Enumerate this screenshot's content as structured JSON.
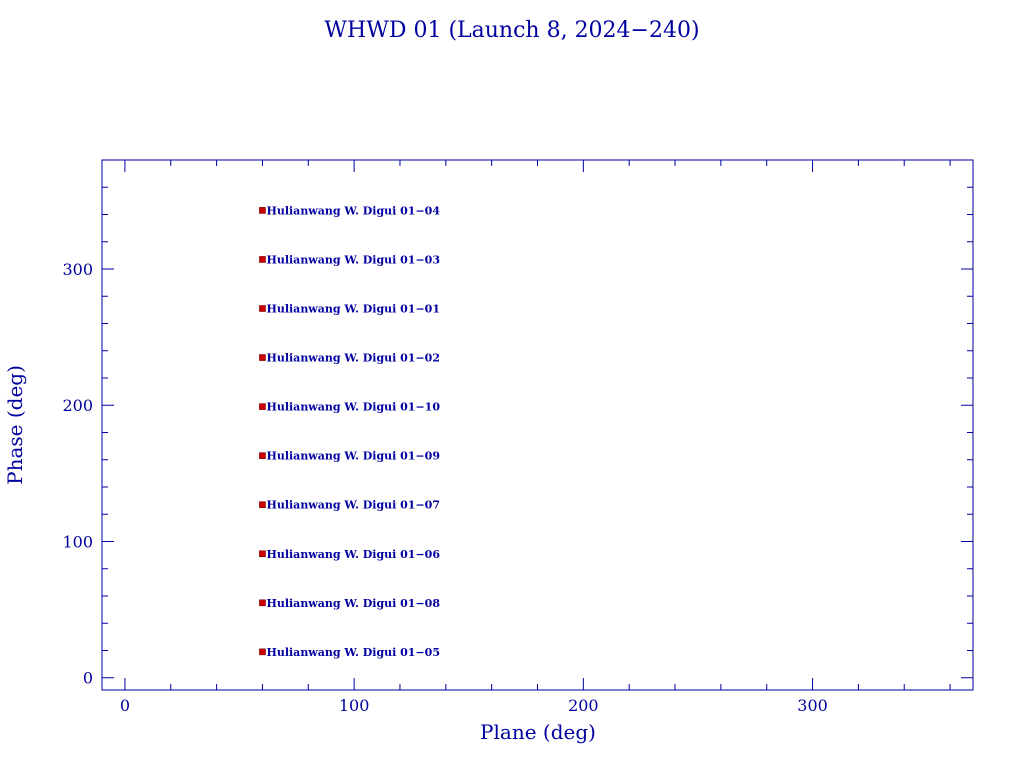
{
  "chart_data": {
    "type": "scatter",
    "title": "WHWD 01 (Launch 8, 2024−240)",
    "xlabel": "Plane (deg)",
    "ylabel": "Phase (deg)",
    "xlim": [
      -10,
      370
    ],
    "ylim": [
      -9,
      380
    ],
    "x_ticks": [
      0,
      100,
      200,
      300
    ],
    "x_tick_labels": [
      "0",
      "100",
      "200",
      "300"
    ],
    "y_ticks": [
      0,
      100,
      200,
      300
    ],
    "y_tick_labels": [
      "0",
      "100",
      "200",
      "300"
    ],
    "x_minor_step": 20,
    "y_minor_step": 20,
    "grid": false,
    "marker_color": "#cc0000",
    "axis_color": "#0000a0",
    "points": [
      {
        "x": 60,
        "y": 343,
        "label": "Hulianwang W. Digui 01−04"
      },
      {
        "x": 60,
        "y": 307,
        "label": "Hulianwang W. Digui 01−03"
      },
      {
        "x": 60,
        "y": 271,
        "label": "Hulianwang W. Digui 01−01"
      },
      {
        "x": 60,
        "y": 235,
        "label": "Hulianwang W. Digui 01−02"
      },
      {
        "x": 60,
        "y": 199,
        "label": "Hulianwang W. Digui 01−10"
      },
      {
        "x": 60,
        "y": 163,
        "label": "Hulianwang W. Digui 01−09"
      },
      {
        "x": 60,
        "y": 127,
        "label": "Hulianwang W. Digui 01−07"
      },
      {
        "x": 60,
        "y": 91,
        "label": "Hulianwang W. Digui 01−06"
      },
      {
        "x": 60,
        "y": 55,
        "label": "Hulianwang W. Digui 01−08"
      },
      {
        "x": 60,
        "y": 19,
        "label": "Hulianwang W. Digui 01−05"
      }
    ]
  }
}
